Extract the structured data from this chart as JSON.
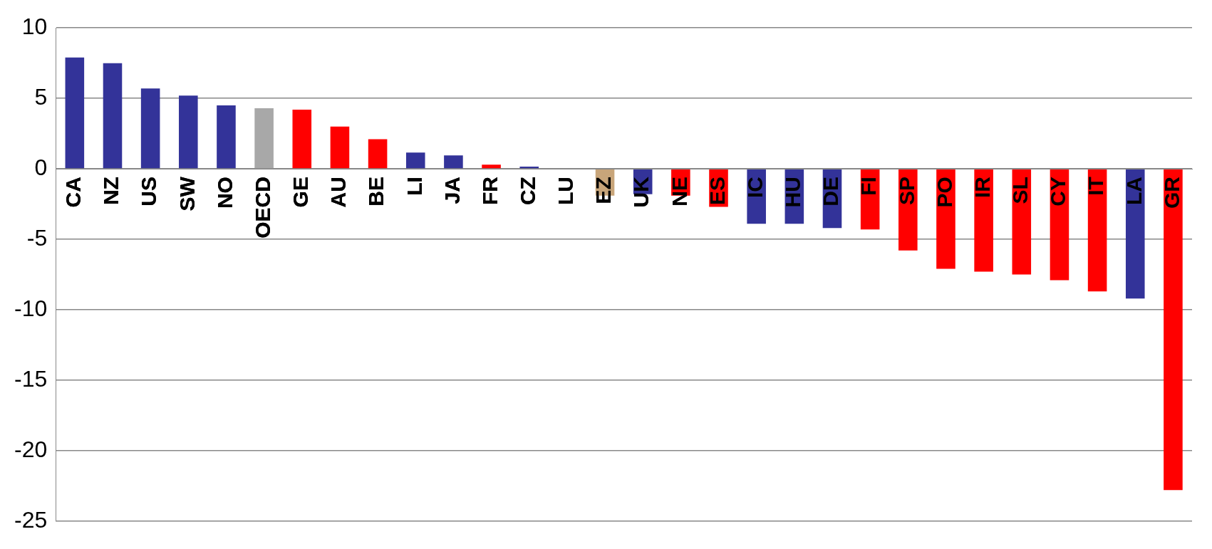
{
  "chart_data": {
    "type": "bar",
    "categories": [
      "CA",
      "NZ",
      "US",
      "SW",
      "NO",
      "OECD",
      "GE",
      "AU",
      "BE",
      "LI",
      "JA",
      "FR",
      "CZ",
      "LU",
      "EZ",
      "UK",
      "NE",
      "ES",
      "IC",
      "HU",
      "DE",
      "FI",
      "SP",
      "PO",
      "IR",
      "SL",
      "CY",
      "IT",
      "LA",
      "GR"
    ],
    "values": [
      7.9,
      7.5,
      5.7,
      5.2,
      4.5,
      4.3,
      4.2,
      3.0,
      2.1,
      1.15,
      0.95,
      0.3,
      0.15,
      null,
      -1.9,
      -1.8,
      -1.9,
      -2.7,
      -3.9,
      -3.9,
      -4.2,
      -4.3,
      -5.8,
      -7.1,
      -7.3,
      -7.5,
      -7.9,
      -8.7,
      -9.2,
      -22.8
    ],
    "colors": [
      "#333399",
      "#333399",
      "#333399",
      "#333399",
      "#333399",
      "#a8a8a8",
      "#ff0000",
      "#ff0000",
      "#ff0000",
      "#333399",
      "#333399",
      "#ff0000",
      "#333399",
      "#333399",
      "#c8a57a",
      "#333399",
      "#ff0000",
      "#ff0000",
      "#333399",
      "#333399",
      "#333399",
      "#ff0000",
      "#ff0000",
      "#ff0000",
      "#ff0000",
      "#ff0000",
      "#ff0000",
      "#ff0000",
      "#333399",
      "#ff0000"
    ],
    "ylim": [
      -25,
      10
    ],
    "yticks": [
      -25,
      -20,
      -15,
      -10,
      -5,
      0,
      5,
      10
    ],
    "grid": "y",
    "legend": false
  }
}
